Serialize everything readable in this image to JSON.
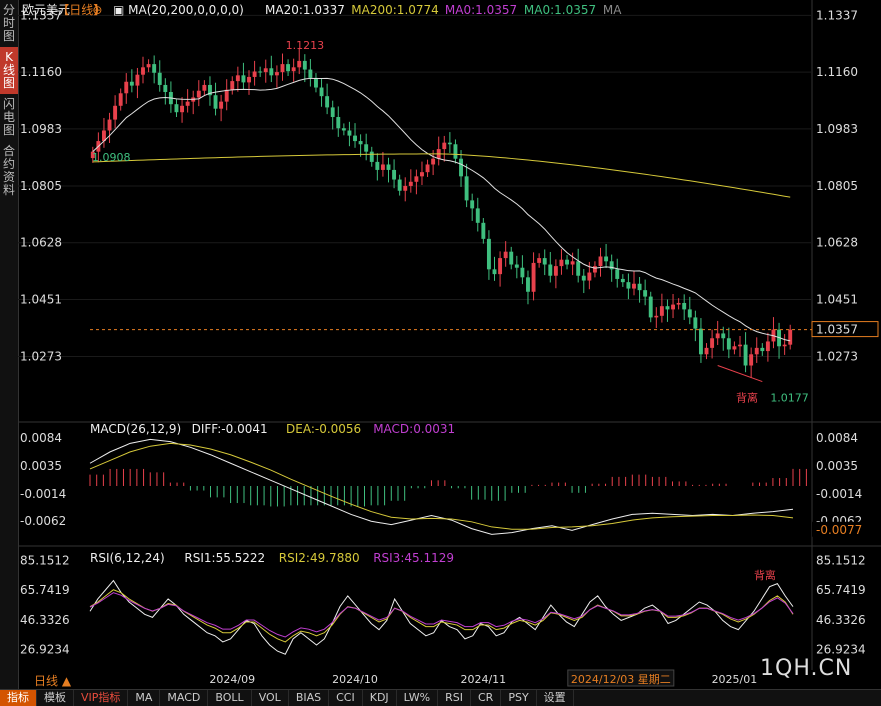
{
  "sidebar": {
    "tabs": [
      "分时图",
      "K线图",
      "闪电图",
      "合约资料"
    ],
    "active": 1
  },
  "header": {
    "symbol": "欧元美元",
    "period": "【日线】",
    "ma_params": "MA(20,200,0,0,0,0)",
    "ma20": "MA20:1.0337",
    "ma200": "MA200:1.0774",
    "ma0a": "MA0:1.0357",
    "ma0b": "MA0:1.0357",
    "ma_tail": "MA"
  },
  "macd_header": {
    "params": "MACD(26,12,9)",
    "diff": "DIFF:-0.0041",
    "dea": "DEA:-0.0056",
    "macd": "MACD:0.0031"
  },
  "rsi_header": {
    "params": "RSI(6,12,24)",
    "rsi1": "RSI1:55.5222",
    "rsi2": "RSI2:49.7880",
    "rsi3": "RSI3:45.1129"
  },
  "colors": {
    "up": "#e8414c",
    "down": "#3fbf7f",
    "ma20": "#e0e0e0",
    "ma200": "#d6c93a",
    "dea": "#d6c93a",
    "rsi3": "#c03fd0",
    "price": "#e67e22"
  },
  "bottom": {
    "buttons": [
      "指标",
      "模板",
      "VIP指标",
      "MA",
      "MACD",
      "BOLL",
      "VOL",
      "BIAS",
      "CCI",
      "KDJ",
      "LW%",
      "RSI",
      "CR",
      "PSY",
      "设置"
    ],
    "period_label": "日线 ▲",
    "cursor_date": "2024/12/03 星期二",
    "watermark": "1QH.CN"
  },
  "chart_data": {
    "type": "candlestick",
    "price_axis": {
      "ticks": [
        "1.1337",
        "1.1160",
        "1.0983",
        "1.0805",
        "1.0628",
        "1.0451",
        "1.0273"
      ],
      "range": [
        1.01,
        1.136
      ]
    },
    "x_labels": [
      {
        "label": "2024/09",
        "index": 25
      },
      {
        "label": "2024/10",
        "index": 47
      },
      {
        "label": "2024/11",
        "index": 70
      },
      {
        "label": "2024/12",
        "index": 92
      },
      {
        "label": "2025/01",
        "index": 115
      }
    ],
    "annotations": {
      "high": "1.1213",
      "start": "1.0908",
      "low": "1.0177",
      "divergence": "背离",
      "current_price": "1.0357"
    },
    "macd_axis": {
      "ticks": [
        "0.0084",
        "0.0035",
        "-0.0014",
        "-0.0062"
      ],
      "current": "-0.0077",
      "range": [
        -0.0095,
        0.0102
      ]
    },
    "rsi_axis": {
      "ticks": [
        "85.1512",
        "65.7419",
        "46.3326",
        "26.9234"
      ],
      "range": [
        15,
        88
      ]
    },
    "closes": [
      1.0912,
      1.0945,
      1.0978,
      1.1012,
      1.1055,
      1.1094,
      1.113,
      1.1118,
      1.1152,
      1.1175,
      1.1185,
      1.1158,
      1.112,
      1.1098,
      1.106,
      1.1035,
      1.1055,
      1.1068,
      1.1081,
      1.1102,
      1.112,
      1.1088,
      1.1046,
      1.1068,
      1.1105,
      1.1132,
      1.115,
      1.1128,
      1.1145,
      1.1162,
      1.116,
      1.1172,
      1.115,
      1.116,
      1.1185,
      1.1163,
      1.1175,
      1.1195,
      1.1168,
      1.1142,
      1.1112,
      1.1085,
      1.105,
      1.102,
      1.0985,
      1.0978,
      1.0962,
      1.0945,
      1.0935,
      1.0912,
      1.088,
      1.0855,
      1.0872,
      1.0855,
      1.0825,
      1.079,
      1.0805,
      1.0818,
      1.0835,
      1.0848,
      1.0872,
      1.089,
      1.092,
      1.094,
      1.0935,
      1.089,
      1.0835,
      1.076,
      1.0735,
      1.069,
      1.064,
      1.0545,
      1.053,
      1.058,
      1.06,
      1.056,
      1.055,
      1.052,
      1.0475,
      1.0565,
      1.058,
      1.056,
      1.0525,
      1.0555,
      1.0575,
      1.056,
      1.057,
      1.0525,
      1.051,
      1.0535,
      1.0555,
      1.0585,
      1.057,
      1.0545,
      1.0515,
      1.0505,
      1.0485,
      1.05,
      1.048,
      1.046,
      1.0395,
      1.04,
      1.043,
      1.042,
      1.0435,
      1.044,
      1.042,
      1.0395,
      1.036,
      1.028,
      1.03,
      1.033,
      1.0345,
      1.033,
      1.0295,
      1.0305,
      1.031,
      1.0245,
      1.028,
      1.03,
      1.029,
      1.032,
      1.0357,
      1.0305,
      1.031,
      1.0357
    ],
    "ma20_start": 1.092,
    "ma200": {
      "start": 1.088,
      "peak": 1.0905,
      "end": 1.077
    },
    "macd": {
      "diff": [
        0.004,
        0.006,
        0.0075,
        0.0082,
        0.0078,
        0.0068,
        0.0055,
        0.004,
        0.0025,
        0.001,
        -0.0005,
        -0.002,
        -0.0035,
        -0.005,
        -0.0062,
        -0.0068,
        -0.006,
        -0.0052,
        -0.006,
        -0.0075,
        -0.0085,
        -0.0082,
        -0.0075,
        -0.007,
        -0.0078,
        -0.0068,
        -0.0058,
        -0.005,
        -0.0048,
        -0.005,
        -0.0052,
        -0.005,
        -0.0052,
        -0.0048,
        -0.0045,
        -0.0041
      ],
      "dea": [
        0.003,
        0.0045,
        0.006,
        0.007,
        0.0075,
        0.0072,
        0.0065,
        0.0055,
        0.0042,
        0.0028,
        0.0012,
        -0.0003,
        -0.0018,
        -0.0032,
        -0.0045,
        -0.0055,
        -0.0058,
        -0.0057,
        -0.0058,
        -0.0063,
        -0.0072,
        -0.0076,
        -0.0076,
        -0.0073,
        -0.0072,
        -0.007,
        -0.0066,
        -0.006,
        -0.0056,
        -0.0054,
        -0.0053,
        -0.0052,
        -0.0052,
        -0.0051,
        -0.0052,
        -0.0056
      ]
    },
    "rsi": {
      "rsi1": [
        52,
        60,
        66,
        72,
        64,
        58,
        54,
        50,
        48,
        54,
        60,
        56,
        50,
        46,
        42,
        38,
        36,
        32,
        34,
        40,
        46,
        44,
        36,
        30,
        26,
        24,
        34,
        38,
        34,
        30,
        34,
        44,
        55,
        62,
        56,
        50,
        44,
        40,
        46,
        60,
        52,
        44,
        40,
        36,
        38,
        46,
        42,
        40,
        34,
        36,
        44,
        42,
        36,
        38,
        45,
        48,
        44,
        40,
        48,
        56,
        50,
        45,
        42,
        50,
        58,
        62,
        55,
        50,
        46,
        48,
        50,
        54,
        56,
        52,
        44,
        46,
        50,
        54,
        58,
        56,
        52,
        46,
        42,
        40,
        46,
        52,
        60,
        68,
        70,
        62,
        55
      ],
      "rsi2": [
        55,
        58,
        62,
        66,
        64,
        60,
        57,
        54,
        52,
        54,
        57,
        56,
        52,
        49,
        46,
        43,
        41,
        38,
        38,
        41,
        45,
        45,
        41,
        37,
        34,
        32,
        36,
        39,
        38,
        36,
        38,
        43,
        50,
        55,
        54,
        51,
        48,
        45,
        47,
        54,
        52,
        48,
        45,
        42,
        42,
        45,
        44,
        43,
        40,
        40,
        43,
        43,
        40,
        41,
        44,
        46,
        45,
        43,
        46,
        51,
        50,
        48,
        46,
        48,
        53,
        56,
        54,
        52,
        49,
        49,
        50,
        52,
        53,
        52,
        48,
        48,
        49,
        51,
        54,
        54,
        52,
        50,
        47,
        45,
        47,
        50,
        54,
        59,
        62,
        58,
        50
      ]
    }
  }
}
